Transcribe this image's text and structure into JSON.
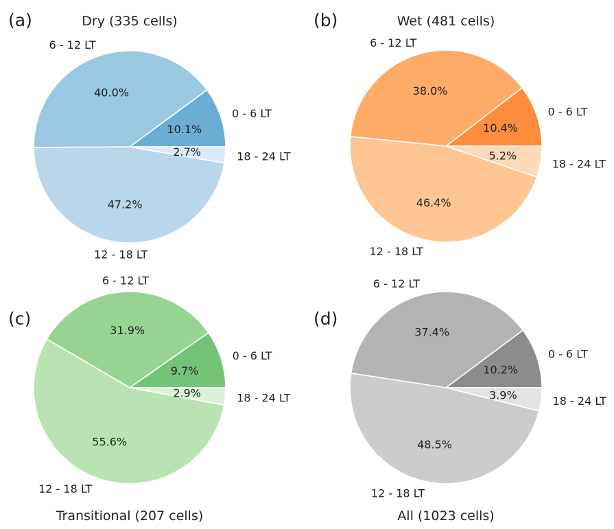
{
  "chart_data": [
    {
      "type": "pie",
      "panel_label": "(a)",
      "title": "Dry (335 cells)",
      "title_position": "top",
      "categories": [
        "0 - 6 LT",
        "6 - 12 LT",
        "12 - 18 LT",
        "18 - 24 LT"
      ],
      "values": [
        10.1,
        40.0,
        47.2,
        2.7
      ],
      "value_labels": [
        "10.1%",
        "40.0%",
        "47.2%",
        "2.7%"
      ],
      "colors": [
        "#6aaed6",
        "#9ac8e0",
        "#bad6eb",
        "#dbe9f6"
      ]
    },
    {
      "type": "pie",
      "panel_label": "(b)",
      "title": "Wet (481 cells)",
      "title_position": "top",
      "categories": [
        "0 - 6 LT",
        "6 - 12 LT",
        "12 - 18 LT",
        "18 - 24 LT"
      ],
      "values": [
        10.4,
        38.0,
        46.4,
        5.2
      ],
      "value_labels": [
        "10.4%",
        "38.0%",
        "46.4%",
        "5.2%"
      ],
      "colors": [
        "#fd8d3c",
        "#fdab67",
        "#fdc692",
        "#fdd9b5"
      ]
    },
    {
      "type": "pie",
      "panel_label": "(c)",
      "title": "Transitional (207 cells)",
      "title_position": "bottom",
      "categories": [
        "0 - 6 LT",
        "6 - 12 LT",
        "12 - 18 LT",
        "18 - 24 LT"
      ],
      "values": [
        9.7,
        31.9,
        55.6,
        2.9
      ],
      "value_labels": [
        "9.7%",
        "31.9%",
        "55.6%",
        "2.9%"
      ],
      "colors": [
        "#73c476",
        "#97d494",
        "#b9e3b2",
        "#dbf1d6"
      ]
    },
    {
      "type": "pie",
      "panel_label": "(d)",
      "title": "All (1023 cells)",
      "title_position": "bottom",
      "categories": [
        "0 - 6 LT",
        "6 - 12 LT",
        "12 - 18 LT",
        "18 - 24 LT"
      ],
      "values": [
        10.2,
        37.4,
        48.5,
        3.9
      ],
      "value_labels": [
        "10.2%",
        "37.4%",
        "48.5%",
        "3.9%"
      ],
      "colors": [
        "#8c8c8c",
        "#b3b3b3",
        "#cccccc",
        "#e3e3e3"
      ]
    }
  ]
}
